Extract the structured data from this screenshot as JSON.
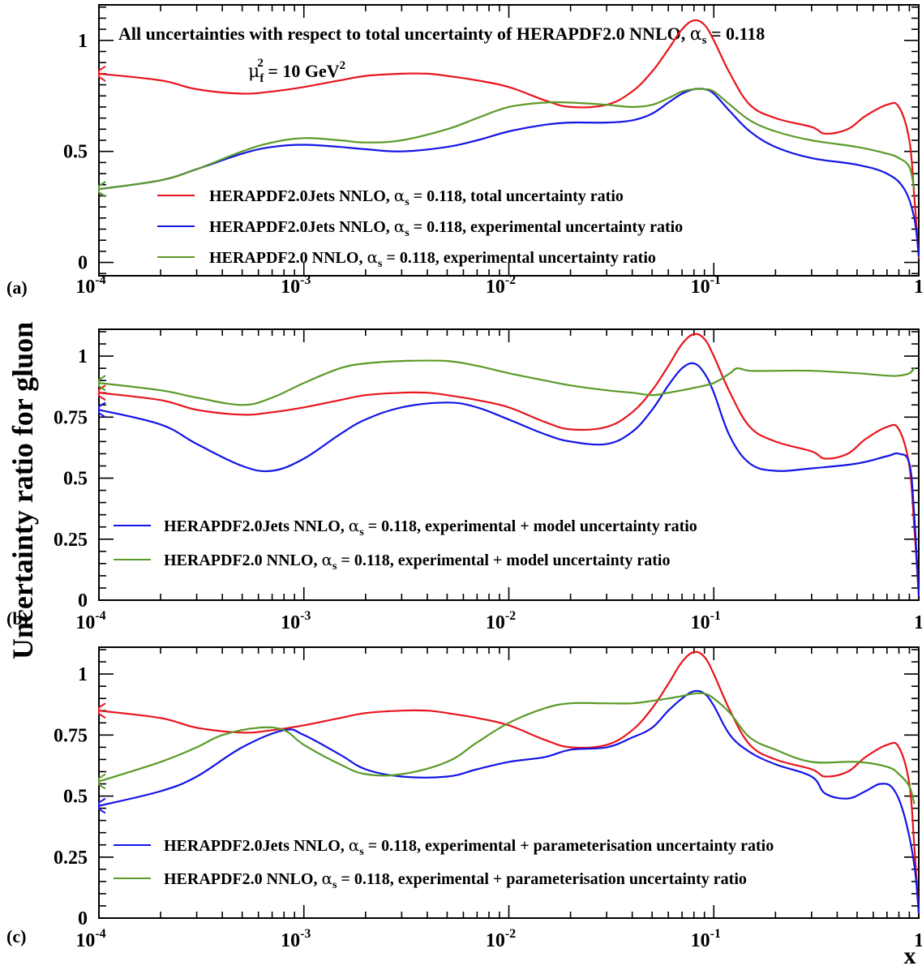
{
  "ylabel": "Uncertainty ratio for gluon",
  "xlabel": "x",
  "colors": {
    "red": "#e8141c",
    "blue": "#1414e6",
    "green": "#5a9a28"
  },
  "chart_data": [
    {
      "panel_label": "(a)",
      "type": "line",
      "title": "All uncertainties with respect to total uncertainty of  HERAPDF2.0 NNLO, αs = 0.118",
      "title_pre": "All uncertainties with respect to total uncertainty of  HERAPDF2.0 NNLO, ",
      "title_alpha": "α",
      "title_sub": "s",
      "title_post": " = 0.118",
      "scale": "μf² = 10 GeV²",
      "scale_mu": "μ",
      "scale_f": "f",
      "scale_sup2": "2",
      "scale_mid": " = 10 GeV",
      "xscale": "log",
      "xlim": [
        0.0001,
        1
      ],
      "ylim": [
        -0.06,
        1.16
      ],
      "xticklabels": [
        "10-4",
        "10-3",
        "10-2",
        "10-1",
        "1"
      ],
      "yticks": [
        0,
        0.5,
        1
      ],
      "yticklabels": [
        "0",
        "0.5",
        "1"
      ],
      "series": [
        {
          "name": "HERAPDF2.0Jets NNLO, αs = 0.118, total uncertainty ratio",
          "color": "red",
          "x": [
            0.0001,
            0.0002,
            0.0003,
            0.0005,
            0.0007,
            0.001,
            0.0015,
            0.002,
            0.003,
            0.004,
            0.005,
            0.007,
            0.01,
            0.015,
            0.02,
            0.03,
            0.04,
            0.05,
            0.06,
            0.07,
            0.08,
            0.09,
            0.1,
            0.12,
            0.15,
            0.2,
            0.3,
            0.35,
            0.45,
            0.55,
            0.7,
            0.8,
            0.9,
            0.95,
            1.0
          ],
          "y": [
            0.85,
            0.82,
            0.78,
            0.76,
            0.77,
            0.79,
            0.82,
            0.84,
            0.85,
            0.85,
            0.84,
            0.82,
            0.79,
            0.73,
            0.7,
            0.71,
            0.77,
            0.86,
            0.96,
            1.05,
            1.09,
            1.07,
            1.0,
            0.85,
            0.71,
            0.65,
            0.61,
            0.58,
            0.6,
            0.66,
            0.71,
            0.7,
            0.55,
            0.3,
            0.02
          ]
        },
        {
          "name": "HERAPDF2.0Jets NNLO, αs = 0.118, experimental uncertainty ratio",
          "color": "blue",
          "x": [
            0.0001,
            0.0002,
            0.0003,
            0.0005,
            0.0007,
            0.001,
            0.0015,
            0.002,
            0.003,
            0.005,
            0.007,
            0.01,
            0.015,
            0.02,
            0.03,
            0.04,
            0.05,
            0.06,
            0.07,
            0.08,
            0.09,
            0.1,
            0.12,
            0.15,
            0.2,
            0.3,
            0.5,
            0.7,
            0.85,
            0.95,
            1.0
          ],
          "y": [
            0.33,
            0.37,
            0.42,
            0.49,
            0.52,
            0.53,
            0.52,
            0.51,
            0.5,
            0.52,
            0.55,
            0.59,
            0.62,
            0.63,
            0.63,
            0.64,
            0.67,
            0.72,
            0.76,
            0.78,
            0.78,
            0.76,
            0.68,
            0.59,
            0.52,
            0.47,
            0.44,
            0.4,
            0.33,
            0.2,
            0.03
          ]
        },
        {
          "name": "HERAPDF2.0 NNLO, αs = 0.118, experimental uncertainty ratio",
          "color": "green",
          "x": [
            0.0001,
            0.0002,
            0.0003,
            0.0005,
            0.0007,
            0.001,
            0.0015,
            0.002,
            0.003,
            0.005,
            0.007,
            0.01,
            0.015,
            0.02,
            0.03,
            0.04,
            0.05,
            0.06,
            0.07,
            0.08,
            0.09,
            0.1,
            0.12,
            0.15,
            0.2,
            0.3,
            0.5,
            0.7,
            0.8,
            0.9,
            0.95
          ],
          "y": [
            0.33,
            0.37,
            0.42,
            0.5,
            0.54,
            0.56,
            0.55,
            0.54,
            0.55,
            0.6,
            0.65,
            0.7,
            0.72,
            0.72,
            0.71,
            0.7,
            0.71,
            0.74,
            0.77,
            0.78,
            0.78,
            0.77,
            0.71,
            0.64,
            0.59,
            0.55,
            0.52,
            0.49,
            0.47,
            0.43,
            0.33
          ]
        }
      ]
    },
    {
      "panel_label": "(b)",
      "type": "line",
      "xscale": "log",
      "xlim": [
        0.0001,
        1
      ],
      "ylim": [
        0,
        1.11
      ],
      "xticklabels": [
        "10-4",
        "10-3",
        "10-2",
        "10-1",
        "1"
      ],
      "yticks": [
        0,
        0.25,
        0.5,
        0.75,
        1
      ],
      "yticklabels": [
        "0",
        "0.25",
        "0.5",
        "0.75",
        "1"
      ],
      "series": [
        {
          "color": "red",
          "x": [
            0.0001,
            0.0002,
            0.0003,
            0.0005,
            0.0007,
            0.001,
            0.0015,
            0.002,
            0.003,
            0.004,
            0.005,
            0.007,
            0.01,
            0.015,
            0.02,
            0.03,
            0.04,
            0.05,
            0.06,
            0.07,
            0.08,
            0.09,
            0.1,
            0.12,
            0.15,
            0.2,
            0.3,
            0.35,
            0.45,
            0.55,
            0.7,
            0.8,
            0.9,
            0.95,
            1.0
          ],
          "y": [
            0.85,
            0.82,
            0.78,
            0.76,
            0.77,
            0.79,
            0.82,
            0.84,
            0.85,
            0.85,
            0.84,
            0.82,
            0.79,
            0.73,
            0.7,
            0.71,
            0.77,
            0.86,
            0.96,
            1.05,
            1.09,
            1.07,
            1.0,
            0.85,
            0.71,
            0.65,
            0.61,
            0.58,
            0.6,
            0.66,
            0.71,
            0.7,
            0.55,
            0.3,
            0.02
          ]
        },
        {
          "name": "HERAPDF2.0Jets NNLO, αs = 0.118, experimental + model uncertainty ratio",
          "color": "blue",
          "x": [
            0.0001,
            0.0002,
            0.0003,
            0.0005,
            0.0007,
            0.001,
            0.0015,
            0.002,
            0.003,
            0.005,
            0.007,
            0.01,
            0.015,
            0.02,
            0.03,
            0.04,
            0.05,
            0.06,
            0.07,
            0.08,
            0.09,
            0.1,
            0.12,
            0.15,
            0.2,
            0.3,
            0.5,
            0.7,
            0.8,
            0.9,
            0.95,
            1.0
          ],
          "y": [
            0.78,
            0.72,
            0.64,
            0.55,
            0.53,
            0.58,
            0.68,
            0.74,
            0.79,
            0.81,
            0.79,
            0.74,
            0.68,
            0.65,
            0.64,
            0.69,
            0.78,
            0.88,
            0.95,
            0.97,
            0.93,
            0.85,
            0.67,
            0.56,
            0.53,
            0.54,
            0.56,
            0.59,
            0.6,
            0.56,
            0.35,
            0.02
          ]
        },
        {
          "name": "HERAPDF2.0 NNLO, αs = 0.118, experimental + model uncertainty ratio",
          "color": "green",
          "x": [
            0.0001,
            0.0002,
            0.0003,
            0.0005,
            0.0007,
            0.001,
            0.0015,
            0.002,
            0.003,
            0.005,
            0.007,
            0.01,
            0.015,
            0.02,
            0.03,
            0.04,
            0.05,
            0.06,
            0.07,
            0.08,
            0.1,
            0.12,
            0.13,
            0.15,
            0.2,
            0.3,
            0.5,
            0.7,
            0.8,
            0.9,
            0.95
          ],
          "y": [
            0.89,
            0.86,
            0.83,
            0.8,
            0.83,
            0.89,
            0.95,
            0.97,
            0.98,
            0.98,
            0.96,
            0.93,
            0.9,
            0.88,
            0.86,
            0.85,
            0.84,
            0.85,
            0.86,
            0.87,
            0.89,
            0.93,
            0.95,
            0.94,
            0.94,
            0.94,
            0.93,
            0.92,
            0.92,
            0.93,
            0.95
          ]
        }
      ]
    },
    {
      "panel_label": "(c)",
      "type": "line",
      "xscale": "log",
      "xlim": [
        0.0001,
        1
      ],
      "ylim": [
        0,
        1.11
      ],
      "xticklabels": [
        "10-4",
        "10-3",
        "10-2",
        "10-1",
        "1"
      ],
      "yticks": [
        0,
        0.25,
        0.5,
        0.75,
        1
      ],
      "yticklabels": [
        "0",
        "0.25",
        "0.5",
        "0.75",
        "1"
      ],
      "series": [
        {
          "color": "red",
          "x": [
            0.0001,
            0.0002,
            0.0003,
            0.0005,
            0.0007,
            0.001,
            0.0015,
            0.002,
            0.003,
            0.004,
            0.005,
            0.007,
            0.01,
            0.015,
            0.02,
            0.03,
            0.04,
            0.05,
            0.06,
            0.07,
            0.08,
            0.09,
            0.1,
            0.12,
            0.15,
            0.2,
            0.3,
            0.35,
            0.45,
            0.55,
            0.7,
            0.8,
            0.9,
            0.95,
            1.0
          ],
          "y": [
            0.85,
            0.82,
            0.78,
            0.76,
            0.77,
            0.79,
            0.82,
            0.84,
            0.85,
            0.85,
            0.84,
            0.82,
            0.79,
            0.73,
            0.7,
            0.71,
            0.77,
            0.86,
            0.96,
            1.05,
            1.09,
            1.07,
            1.0,
            0.85,
            0.71,
            0.65,
            0.61,
            0.58,
            0.6,
            0.66,
            0.71,
            0.7,
            0.55,
            0.3,
            0.02
          ]
        },
        {
          "name": "HERAPDF2.0Jets NNLO, αs = 0.118, experimental + parameterisation uncertainty ratio",
          "color": "blue",
          "x": [
            0.0001,
            0.0002,
            0.0003,
            0.0005,
            0.0008,
            0.001,
            0.0015,
            0.002,
            0.003,
            0.005,
            0.007,
            0.01,
            0.015,
            0.02,
            0.03,
            0.04,
            0.05,
            0.06,
            0.07,
            0.08,
            0.09,
            0.1,
            0.12,
            0.15,
            0.2,
            0.3,
            0.35,
            0.45,
            0.55,
            0.65,
            0.75,
            0.85,
            0.95,
            1.0
          ],
          "y": [
            0.46,
            0.52,
            0.58,
            0.7,
            0.77,
            0.75,
            0.67,
            0.61,
            0.58,
            0.58,
            0.61,
            0.64,
            0.66,
            0.69,
            0.7,
            0.74,
            0.78,
            0.85,
            0.9,
            0.93,
            0.92,
            0.87,
            0.75,
            0.68,
            0.63,
            0.58,
            0.51,
            0.49,
            0.52,
            0.55,
            0.53,
            0.42,
            0.22,
            0.02
          ]
        },
        {
          "name": "HERAPDF2.0 NNLO, αs = 0.118, experimental + parameterisation uncertainty ratio",
          "color": "green",
          "x": [
            0.0001,
            0.0002,
            0.0003,
            0.0004,
            0.0006,
            0.0008,
            0.001,
            0.0015,
            0.002,
            0.003,
            0.005,
            0.007,
            0.01,
            0.015,
            0.02,
            0.03,
            0.04,
            0.05,
            0.06,
            0.07,
            0.08,
            0.09,
            0.1,
            0.12,
            0.15,
            0.2,
            0.3,
            0.5,
            0.7,
            0.8,
            0.9,
            0.95
          ],
          "y": [
            0.56,
            0.64,
            0.7,
            0.75,
            0.78,
            0.77,
            0.71,
            0.63,
            0.59,
            0.59,
            0.64,
            0.72,
            0.8,
            0.86,
            0.88,
            0.88,
            0.88,
            0.89,
            0.9,
            0.91,
            0.92,
            0.92,
            0.9,
            0.84,
            0.74,
            0.69,
            0.64,
            0.64,
            0.62,
            0.59,
            0.54,
            0.47
          ]
        }
      ]
    }
  ]
}
